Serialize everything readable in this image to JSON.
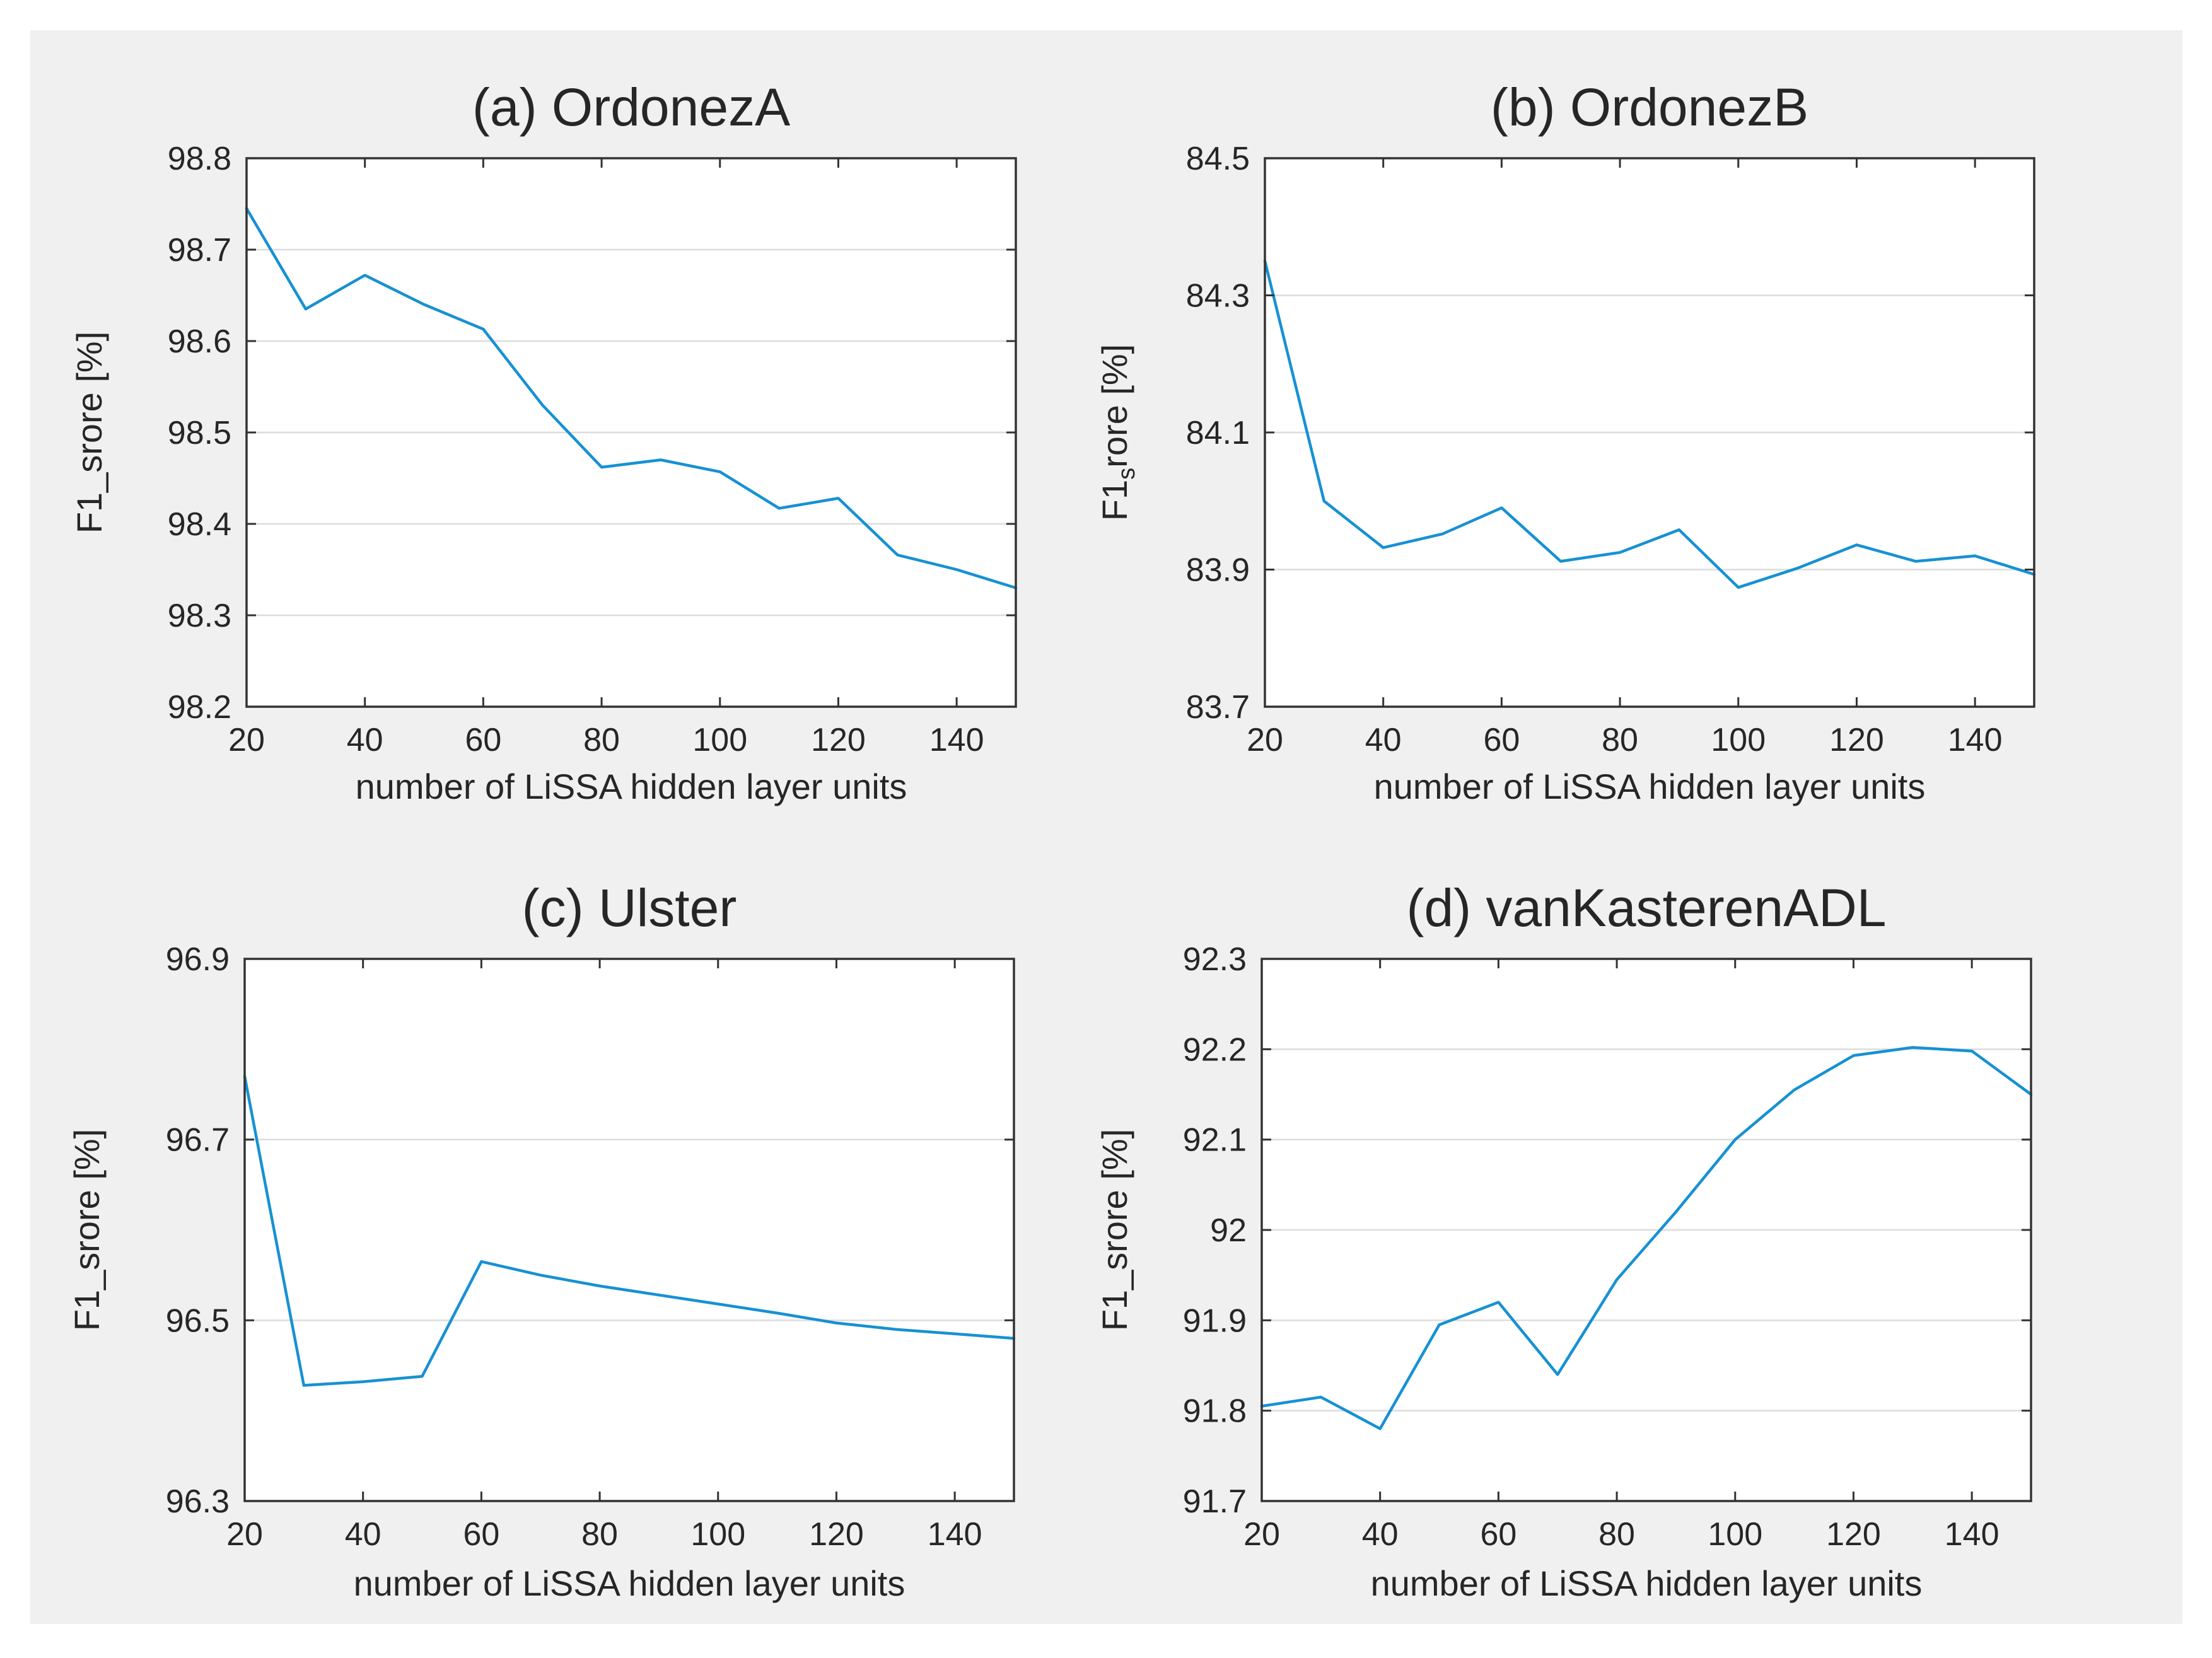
{
  "figure": {
    "background": "#f0f0f0",
    "outer_background": "#ffffff",
    "plot_background": "#ffffff",
    "line_color": "#1691d3",
    "grid_color": "#dcdcdc",
    "axis_color": "#333333",
    "tick_label_color": "#262626"
  },
  "chart_data": [
    {
      "type": "line",
      "title": "(a) OrdonezA",
      "ylabel": "F1_srore [%]",
      "xlabel": "number of LiSSA hidden layer units",
      "x": [
        20,
        30,
        40,
        50,
        60,
        70,
        80,
        90,
        100,
        110,
        120,
        130,
        140,
        150
      ],
      "y": [
        98.745,
        98.635,
        98.672,
        98.64,
        98.613,
        98.53,
        98.462,
        98.47,
        98.457,
        98.417,
        98.428,
        98.366,
        98.35,
        98.33
      ],
      "xlim": [
        20,
        150
      ],
      "ylim": [
        98.2,
        98.8
      ],
      "xticks": {
        "values": [
          20,
          40,
          60,
          80,
          100,
          120,
          140
        ],
        "labels": [
          "20",
          "40",
          "60",
          "80",
          "100",
          "120",
          "140"
        ]
      },
      "yticks": {
        "values": [
          98.2,
          98.3,
          98.4,
          98.5,
          98.6,
          98.7,
          98.8
        ],
        "labels": [
          "98.2",
          "98.3",
          "98.4",
          "98.5",
          "98.6",
          "98.7",
          "98.8"
        ]
      },
      "grid": "horizontal",
      "legend": "none"
    },
    {
      "type": "line",
      "title": "(b) OrdonezB",
      "ylabel_parts": [
        {
          "text": "F1"
        },
        {
          "text": "s",
          "sub": true
        },
        {
          "text": "rore [%]"
        }
      ],
      "xlabel": "number of LiSSA hidden layer units",
      "x": [
        20,
        30,
        40,
        50,
        60,
        70,
        80,
        90,
        100,
        110,
        120,
        130,
        140,
        150
      ],
      "y": [
        84.35,
        84.0,
        83.932,
        83.952,
        83.99,
        83.912,
        83.925,
        83.958,
        83.874,
        83.902,
        83.936,
        83.912,
        83.92,
        83.893
      ],
      "xlim": [
        20,
        150
      ],
      "ylim": [
        83.7,
        84.5
      ],
      "xticks": {
        "values": [
          20,
          40,
          60,
          80,
          100,
          120,
          140
        ],
        "labels": [
          "20",
          "40",
          "60",
          "80",
          "100",
          "120",
          "140"
        ]
      },
      "yticks": {
        "values": [
          83.7,
          83.9,
          84.1,
          84.3,
          84.5
        ],
        "labels": [
          "83.7",
          "83.9",
          "84.1",
          "84.3",
          "84.5"
        ]
      },
      "grid": "horizontal",
      "legend": "none"
    },
    {
      "type": "line",
      "title": "(c) Ulster",
      "ylabel": "F1_srore [%]",
      "xlabel": "number of LiSSA hidden layer units",
      "x": [
        20,
        30,
        40,
        50,
        60,
        70,
        80,
        90,
        100,
        110,
        120,
        130,
        140,
        150
      ],
      "y": [
        96.77,
        96.428,
        96.432,
        96.438,
        96.565,
        96.55,
        96.538,
        96.528,
        96.518,
        96.508,
        96.497,
        96.49,
        96.485,
        96.48
      ],
      "xlim": [
        20,
        150
      ],
      "ylim": [
        96.3,
        96.9
      ],
      "xticks": {
        "values": [
          20,
          40,
          60,
          80,
          100,
          120,
          140
        ],
        "labels": [
          "20",
          "40",
          "60",
          "80",
          "100",
          "120",
          "140"
        ]
      },
      "yticks": {
        "values": [
          96.3,
          96.5,
          96.7,
          96.9
        ],
        "labels": [
          "96.3",
          "96.5",
          "96.7",
          "96.9"
        ]
      },
      "grid": "horizontal",
      "legend": "none"
    },
    {
      "type": "line",
      "title": "(d) vanKasterenADL",
      "ylabel": "F1_srore [%]",
      "xlabel": "number of LiSSA hidden layer units",
      "x": [
        20,
        30,
        40,
        50,
        60,
        70,
        80,
        90,
        100,
        110,
        120,
        130,
        140,
        150
      ],
      "y": [
        91.805,
        91.815,
        91.78,
        91.895,
        91.92,
        91.84,
        91.945,
        92.02,
        92.1,
        92.155,
        92.193,
        92.202,
        92.198,
        92.15
      ],
      "xlim": [
        20,
        150
      ],
      "ylim": [
        91.7,
        92.3
      ],
      "xticks": {
        "values": [
          20,
          40,
          60,
          80,
          100,
          120,
          140
        ],
        "labels": [
          "20",
          "40",
          "60",
          "80",
          "100",
          "120",
          "140"
        ]
      },
      "yticks": {
        "values": [
          91.7,
          91.8,
          91.9,
          92,
          92.1,
          92.2,
          92.3
        ],
        "labels": [
          "91.7",
          "91.8",
          "91.9",
          "92",
          "92.1",
          "92.2",
          "92.3"
        ]
      },
      "grid": "horizontal",
      "legend": "none"
    }
  ]
}
